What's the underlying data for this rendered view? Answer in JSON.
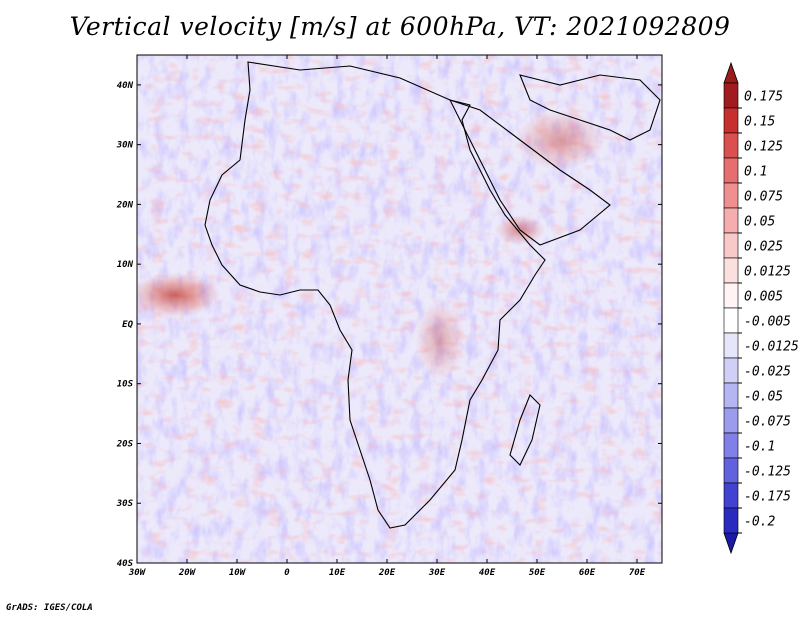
{
  "title": "Vertical velocity [m/s] at 600hPa, VT: 2021092809",
  "footer": "GrADS: IGES/COLA",
  "map": {
    "lon_range": [
      -30,
      75
    ],
    "lat_range": [
      -40,
      45
    ],
    "lat_ticks": [
      {
        "value": 40,
        "label": "40N"
      },
      {
        "value": 30,
        "label": "30N"
      },
      {
        "value": 20,
        "label": "20N"
      },
      {
        "value": 10,
        "label": "10N"
      },
      {
        "value": 0,
        "label": "EQ"
      },
      {
        "value": -10,
        "label": "10S"
      },
      {
        "value": -20,
        "label": "20S"
      },
      {
        "value": -30,
        "label": "30S"
      },
      {
        "value": -40,
        "label": "40S"
      }
    ],
    "lon_ticks": [
      {
        "value": -30,
        "label": "30W"
      },
      {
        "value": -20,
        "label": "20W"
      },
      {
        "value": -10,
        "label": "10W"
      },
      {
        "value": 0,
        "label": "0"
      },
      {
        "value": 10,
        "label": "10E"
      },
      {
        "value": 20,
        "label": "20E"
      },
      {
        "value": 30,
        "label": "30E"
      },
      {
        "value": 40,
        "label": "40E"
      },
      {
        "value": 50,
        "label": "50E"
      },
      {
        "value": 60,
        "label": "60E"
      },
      {
        "value": 70,
        "label": "70E"
      }
    ]
  },
  "colorbar": {
    "levels": [
      {
        "label": "0.175",
        "color": "#a11b1f"
      },
      {
        "label": "0.15",
        "color": "#c72e2e"
      },
      {
        "label": "0.125",
        "color": "#db4f4f"
      },
      {
        "label": "0.1",
        "color": "#e66e6e"
      },
      {
        "label": "0.075",
        "color": "#ef8f8f"
      },
      {
        "label": "0.05",
        "color": "#f5adad"
      },
      {
        "label": "0.025",
        "color": "#f9c9c9"
      },
      {
        "label": "0.0125",
        "color": "#fce0e0"
      },
      {
        "label": "0.005",
        "color": "#fff3f3"
      },
      {
        "label": "-0.005",
        "color": "#ffffff"
      },
      {
        "label": "-0.0125",
        "color": "#e6e6fb"
      },
      {
        "label": "-0.025",
        "color": "#cfcff7"
      },
      {
        "label": "-0.05",
        "color": "#b5b5f2"
      },
      {
        "label": "-0.075",
        "color": "#9c9cee"
      },
      {
        "label": "-0.1",
        "color": "#8080e8"
      },
      {
        "label": "-0.125",
        "color": "#6262df"
      },
      {
        "label": "-0.175",
        "color": "#4242d2"
      },
      {
        "label": "-0.2",
        "color": "#2a2ac0"
      }
    ],
    "top_arrow_color": "#9c1b1b",
    "bottom_arrow_color": "#1a1aa8"
  }
}
